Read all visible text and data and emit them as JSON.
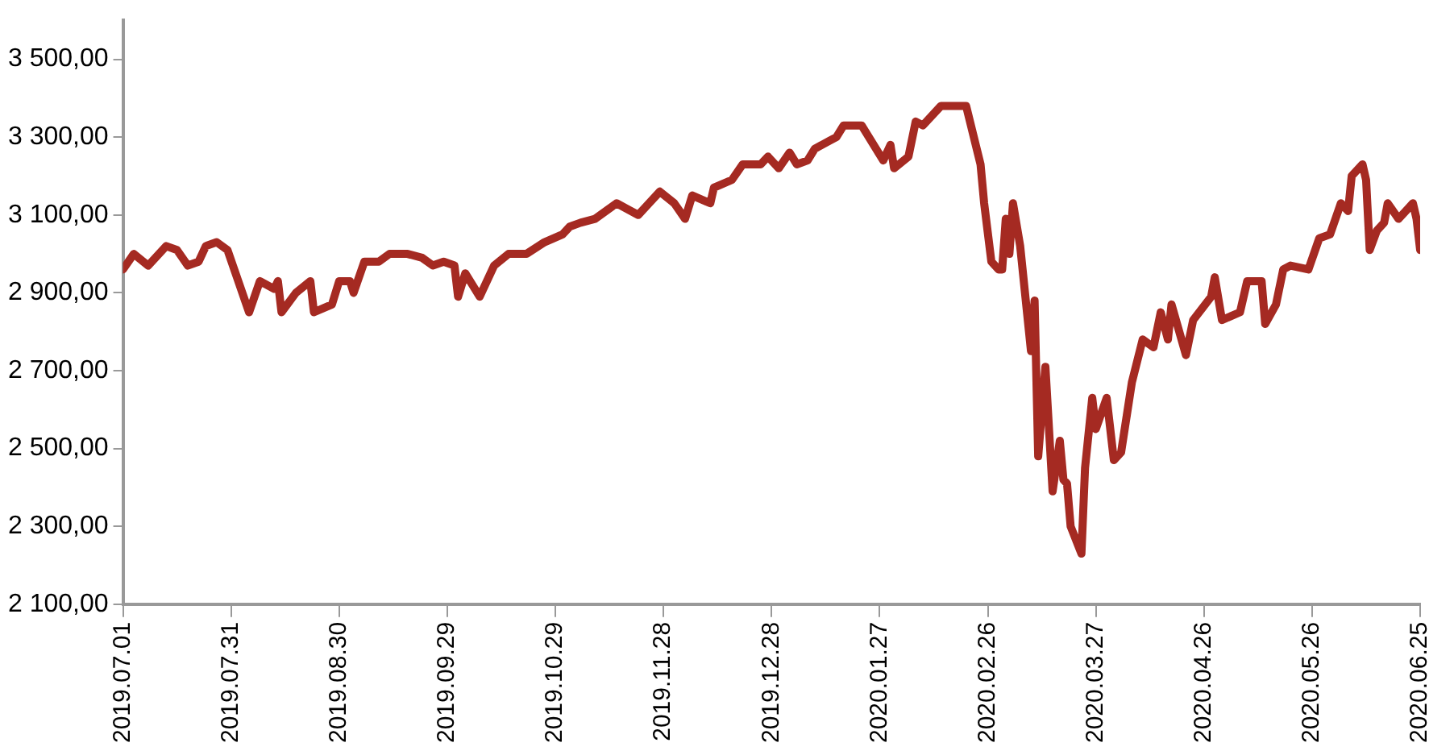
{
  "chart_data": {
    "type": "line",
    "x": [
      "2019-07-01",
      "2019-07-04",
      "2019-07-08",
      "2019-07-13",
      "2019-07-16",
      "2019-07-19",
      "2019-07-22",
      "2019-07-24",
      "2019-07-27",
      "2019-07-30",
      "2019-08-05",
      "2019-08-08",
      "2019-08-12",
      "2019-08-13",
      "2019-08-14",
      "2019-08-18",
      "2019-08-22",
      "2019-08-23",
      "2019-08-28",
      "2019-08-30",
      "2019-09-02",
      "2019-09-03",
      "2019-09-06",
      "2019-09-10",
      "2019-09-13",
      "2019-09-18",
      "2019-09-22",
      "2019-09-25",
      "2019-09-28",
      "2019-10-01",
      "2019-10-02",
      "2019-10-04",
      "2019-10-08",
      "2019-10-12",
      "2019-10-16",
      "2019-10-21",
      "2019-10-26",
      "2019-10-31",
      "2019-11-02",
      "2019-11-05",
      "2019-11-09",
      "2019-11-15",
      "2019-11-21",
      "2019-11-27",
      "2019-12-01",
      "2019-12-04",
      "2019-12-06",
      "2019-12-11",
      "2019-12-12",
      "2019-12-17",
      "2019-12-20",
      "2019-12-25",
      "2019-12-27",
      "2019-12-30",
      "2020-01-02",
      "2020-01-04",
      "2020-01-07",
      "2020-01-09",
      "2020-01-13",
      "2020-01-15",
      "2020-01-17",
      "2020-01-22",
      "2020-01-28",
      "2020-01-30",
      "2020-01-31",
      "2020-02-04",
      "2020-02-06",
      "2020-02-08",
      "2020-02-13",
      "2020-02-19",
      "2020-02-20",
      "2020-02-24",
      "2020-02-25",
      "2020-02-27",
      "2020-02-29",
      "2020-03-01",
      "2020-03-02",
      "2020-03-03",
      "2020-03-04",
      "2020-03-06",
      "2020-03-09",
      "2020-03-10",
      "2020-03-11",
      "2020-03-13",
      "2020-03-15",
      "2020-03-17",
      "2020-03-18",
      "2020-03-19",
      "2020-03-20",
      "2020-03-23",
      "2020-03-24",
      "2020-03-26",
      "2020-03-27",
      "2020-03-30",
      "2020-04-01",
      "2020-04-03",
      "2020-04-06",
      "2020-04-09",
      "2020-04-12",
      "2020-04-14",
      "2020-04-16",
      "2020-04-17",
      "2020-04-21",
      "2020-04-23",
      "2020-04-28",
      "2020-04-29",
      "2020-05-01",
      "2020-05-06",
      "2020-05-08",
      "2020-05-12",
      "2020-05-13",
      "2020-05-16",
      "2020-05-18",
      "2020-05-20",
      "2020-05-25",
      "2020-05-28",
      "2020-05-31",
      "2020-06-03",
      "2020-06-05",
      "2020-06-06",
      "2020-06-09",
      "2020-06-10",
      "2020-06-11",
      "2020-06-13",
      "2020-06-15",
      "2020-06-16",
      "2020-06-19",
      "2020-06-23",
      "2020-06-24",
      "2020-06-25"
    ],
    "series": [
      {
        "color": "#a52a22",
        "values": [
          2960,
          3000,
          2970,
          3020,
          3010,
          2970,
          2980,
          3020,
          3030,
          3010,
          2850,
          2930,
          2910,
          2930,
          2850,
          2900,
          2930,
          2850,
          2870,
          2930,
          2930,
          2900,
          2980,
          2980,
          3000,
          3000,
          2990,
          2970,
          2980,
          2970,
          2890,
          2950,
          2890,
          2970,
          3000,
          3000,
          3030,
          3050,
          3070,
          3080,
          3090,
          3130,
          3100,
          3160,
          3130,
          3090,
          3150,
          3130,
          3170,
          3190,
          3230,
          3230,
          3250,
          3220,
          3260,
          3230,
          3240,
          3270,
          3290,
          3300,
          3330,
          3330,
          3240,
          3280,
          3220,
          3250,
          3340,
          3330,
          3380,
          3380,
          3380,
          3230,
          3130,
          2980,
          2960,
          2960,
          3090,
          3000,
          3130,
          3020,
          2750,
          2880,
          2480,
          2710,
          2390,
          2520,
          2420,
          2410,
          2300,
          2230,
          2450,
          2630,
          2550,
          2630,
          2470,
          2490,
          2670,
          2780,
          2760,
          2850,
          2780,
          2870,
          2740,
          2830,
          2890,
          2940,
          2830,
          2850,
          2930,
          2930,
          2820,
          2870,
          2960,
          2970,
          2960,
          3040,
          3050,
          3130,
          3110,
          3200,
          3230,
          3190,
          3010,
          3060,
          3080,
          3130,
          3090,
          3130,
          3090,
          3010
        ]
      }
    ],
    "xlim": [
      "2019-07-01",
      "2020-06-25"
    ],
    "xticks": [
      {
        "value": "2019-07-01",
        "label": "2019.07.01"
      },
      {
        "value": "2019-07-31",
        "label": "2019.07.31"
      },
      {
        "value": "2019-08-30",
        "label": "2019.08.30"
      },
      {
        "value": "2019-09-29",
        "label": "2019.09.29"
      },
      {
        "value": "2019-10-29",
        "label": "2019.10.29"
      },
      {
        "value": "2019-11-28",
        "label": "2019.11.28"
      },
      {
        "value": "2019-12-28",
        "label": "2019.12.28"
      },
      {
        "value": "2020-01-27",
        "label": "2020.01.27"
      },
      {
        "value": "2020-02-26",
        "label": "2020.02.26"
      },
      {
        "value": "2020-03-27",
        "label": "2020.03.27"
      },
      {
        "value": "2020-04-26",
        "label": "2020.04.26"
      },
      {
        "value": "2020-05-26",
        "label": "2020.05.26"
      },
      {
        "value": "2020-06-25",
        "label": "2020.06.25"
      }
    ],
    "ylim": [
      2100,
      3600
    ],
    "yticks": [
      {
        "value": 2100,
        "label": "2 100,00"
      },
      {
        "value": 2300,
        "label": "2 300,00"
      },
      {
        "value": 2500,
        "label": "2 500,00"
      },
      {
        "value": 2700,
        "label": "2 700,00"
      },
      {
        "value": 2900,
        "label": "2 900,00"
      },
      {
        "value": 3100,
        "label": "3 100,00"
      },
      {
        "value": 3300,
        "label": "3 300,00"
      },
      {
        "value": 3500,
        "label": "3 500,00"
      }
    ],
    "legend": false,
    "marker": "none",
    "line_style": "solid"
  }
}
